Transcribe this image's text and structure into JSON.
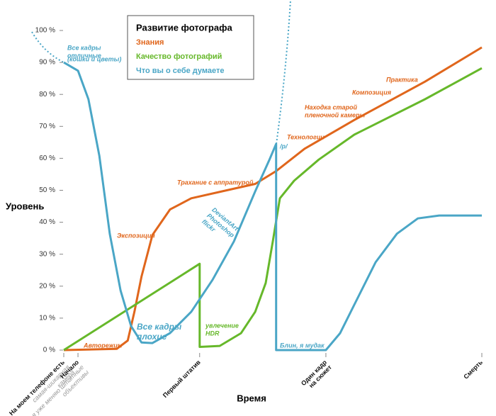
{
  "chart_data": {
    "type": "line",
    "title": "Развитие фотографа",
    "x_label": "Время",
    "y_label": "Уровень",
    "xlim": [
      0,
      100
    ],
    "ylim": [
      0,
      100
    ],
    "yticks": [
      {
        "value": 0,
        "label": "0 %"
      },
      {
        "value": 10,
        "label": "10 %"
      },
      {
        "value": 20,
        "label": "20 %"
      },
      {
        "value": 30,
        "label": "30 %"
      },
      {
        "value": 40,
        "label": "40 %"
      },
      {
        "value": 50,
        "label": "50 %"
      },
      {
        "value": 60,
        "label": "60 %"
      },
      {
        "value": 70,
        "label": "70 %"
      },
      {
        "value": 80,
        "label": "80 %"
      },
      {
        "value": 90,
        "label": "90 %"
      },
      {
        "value": 100,
        "label": "100 %"
      }
    ],
    "xticks": [
      {
        "value": 0,
        "label": [
          "На моем телефоне есть"
        ],
        "note": [
          "самая-шикарная",
          "камера"
        ]
      },
      {
        "value": 3.4,
        "label": [
          "Начало"
        ],
        "note": [
          "я уже меняю штатные",
          "объективы"
        ]
      },
      {
        "value": 32.5,
        "label": [
          "Первый штатив"
        ]
      },
      {
        "value": 62.7,
        "label": [
          "Один кадр",
          "на сюжет"
        ]
      },
      {
        "value": 100,
        "label": [
          "Смерть"
        ]
      }
    ],
    "series": [
      {
        "name": "Знания",
        "color": "#e0661c",
        "x": [
          0,
          12.7,
          15.3,
          16.9,
          18.6,
          21.2,
          25.4,
          30.5,
          39,
          45.8,
          50.8,
          57.6,
          69.5,
          86.4,
          100
        ],
        "values": [
          0,
          0.4,
          3,
          12,
          23,
          36,
          44,
          47.5,
          50,
          52,
          56,
          63,
          72,
          84,
          94.7
        ]
      },
      {
        "name": "Качество фотографий",
        "color": "#66b82a",
        "x": [
          0,
          32.5,
          32.5,
          37.3,
          42.4,
          45.8,
          48.3,
          50,
          51.7,
          55.1,
          61,
          69.5,
          86.4,
          100
        ],
        "values": [
          0,
          27,
          1,
          1.3,
          5.3,
          12,
          21,
          34,
          47.5,
          53,
          59.6,
          67.4,
          78.5,
          88.2
        ]
      },
      {
        "name": "Что вы о себе думаете",
        "color": "#4aa6c6",
        "x": [
          0,
          3.4,
          5.9,
          8.5,
          11,
          13.6,
          16.1,
          18.6,
          21.2,
          25.4,
          30.5,
          35.6,
          40.7,
          45.8,
          49.2,
          50.8,
          50.8,
          62.7,
          66.1,
          69.5,
          74.6,
          79.7,
          84.7,
          89.8,
          100
        ],
        "values": [
          90,
          87.4,
          78.5,
          60.8,
          36.4,
          18.6,
          7.5,
          2.4,
          2.2,
          5.3,
          12,
          22,
          34,
          49.7,
          59.6,
          64.5,
          0,
          0,
          5.3,
          14.2,
          27.5,
          36.4,
          41.2,
          42.1,
          42.1
        ]
      }
    ],
    "annotations": [
      {
        "lines": [
          "Все кадры",
          "отличные"
        ],
        "color": "#4aa6c6"
      },
      {
        "lines": [
          "(кошки и цветы)"
        ],
        "color": "#4aa6c6"
      },
      {
        "lines": [
          "Авторежим"
        ],
        "color": "#e0661c"
      },
      {
        "lines": [
          "Экспозиция"
        ],
        "color": "#e0661c"
      },
      {
        "lines": [
          "Все кадры",
          "плохие"
        ],
        "color": "#4aa6c6"
      },
      {
        "lines": [
          "Трахание с аппратурой"
        ],
        "color": "#e0661c"
      },
      {
        "lines": [
          "DeviantArt",
          "Photoshop",
          "flickr"
        ],
        "color": "#4aa6c6"
      },
      {
        "lines": [
          "/p/"
        ],
        "color": "#4aa6c6"
      },
      {
        "lines": [
          "Технологии"
        ],
        "color": "#e0661c"
      },
      {
        "lines": [
          "Находка старой",
          "пленочной камеры"
        ],
        "color": "#e0661c"
      },
      {
        "lines": [
          "Композиция"
        ],
        "color": "#e0661c"
      },
      {
        "lines": [
          "Практика"
        ],
        "color": "#e0661c"
      },
      {
        "lines": [
          "увлечение",
          "HDR"
        ],
        "color": "#66b82a"
      },
      {
        "lines": [
          "Блин, я мудак"
        ],
        "color": "#4aa6c6"
      }
    ]
  }
}
